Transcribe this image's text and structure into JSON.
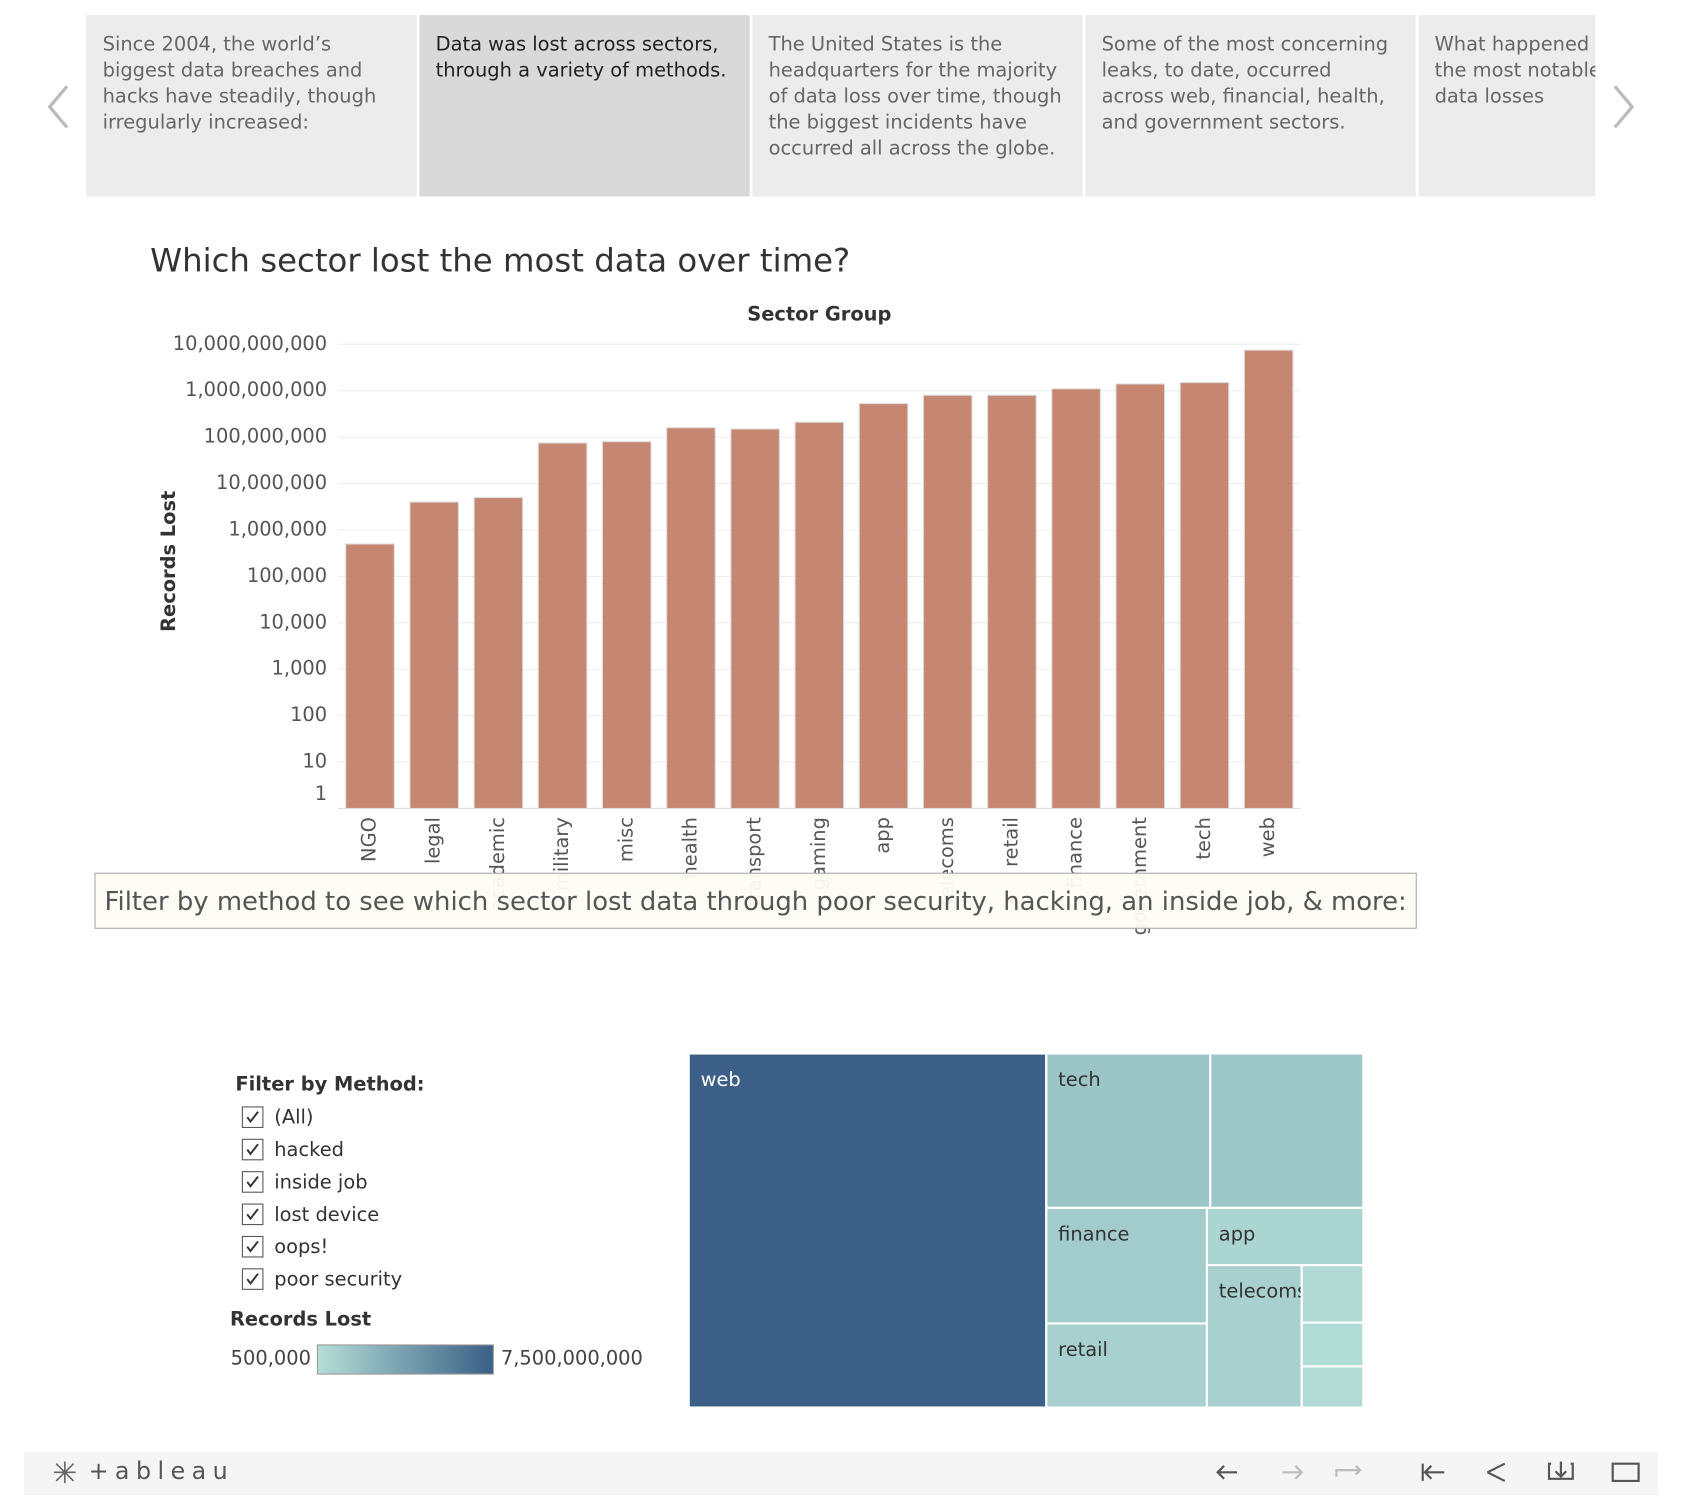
{
  "story_points": [
    "Since 2004, the world’s biggest data breaches and hacks have steadily, though irregularly increased:",
    "Data was lost across sectors, through a variety of methods.",
    "The United States is the headquarters for the majority of data loss over time, though the biggest incidents have occurred all across the globe.",
    "Some of the most concerning leaks, to date, occurred across web, financial, health, and government sectors.",
    "What happened to some of the most notable sensitive data losses"
  ],
  "active_story_point": 1,
  "title": "Which sector lost the most data over time?",
  "filter_note": "Filter by method to see which sector lost data through poor security, hacking, an inside job, & more:",
  "filter": {
    "title": "Filter by Method:",
    "options": [
      "(All)",
      "hacked",
      "inside job",
      "lost device",
      "oops!",
      "poor security"
    ]
  },
  "footer": {
    "logo": "+ableau"
  },
  "chart_data": [
    {
      "type": "bar",
      "x_label": "Sector Group",
      "y_label": "Records Lost",
      "log_scale": true,
      "grid": true,
      "color": "#c07a63",
      "categories": [
        "NGO",
        "legal",
        "academic",
        "military",
        "misc",
        "health",
        "transport",
        "gaming",
        "app",
        "telecoms",
        "retail",
        "finance",
        "government",
        "tech",
        "web"
      ],
      "values": [
        500000,
        4000000,
        5000000,
        75000000,
        80000000,
        160000000,
        150000000,
        210000000,
        530000000,
        800000000,
        800000000,
        1100000000,
        1400000000,
        1500000000,
        7500000000
      ],
      "ylim": [
        1,
        10000000000
      ],
      "yticks": [
        1,
        10,
        100,
        {
          "value": 1000,
          "label": "1,000"
        },
        {
          "value": 10000,
          "label": "10,000"
        },
        {
          "value": 100000,
          "label": "100,000"
        },
        {
          "value": 1000000,
          "label": "1,000,000"
        },
        {
          "value": 10000000,
          "label": "10,000,000"
        },
        {
          "value": 100000000,
          "label": "100,000,000"
        },
        {
          "value": 1000000000,
          "label": "1,000,000,000"
        },
        {
          "value": 10000000000,
          "label": "10,000,000,000"
        }
      ]
    },
    {
      "type": "treemap",
      "categories": [
        "web",
        "tech",
        null,
        "finance",
        "retail",
        "app",
        "telecoms",
        null,
        null,
        null
      ],
      "values": [
        7500000000,
        1500000000,
        1400000000,
        1100000000,
        800000000,
        530000000,
        800000000,
        210000000,
        160000000,
        150000000
      ],
      "color_scale": {
        "title": "Records Lost",
        "min": {
          "value": 500000,
          "label": "500,000"
        },
        "max": {
          "value": 7500000000,
          "label": "7,500,000,000"
        },
        "colors": [
          "#b4ded7",
          "#3b5f86"
        ]
      }
    }
  ]
}
